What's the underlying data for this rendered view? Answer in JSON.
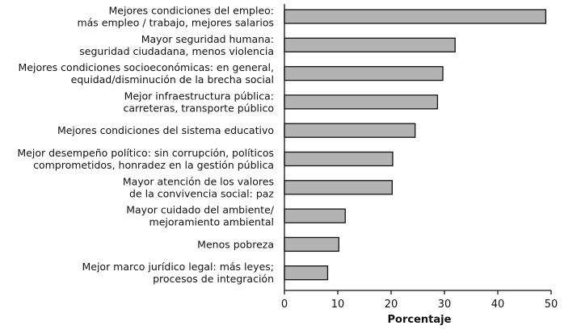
{
  "chart_data": {
    "type": "bar",
    "orientation": "horizontal",
    "categories": [
      [
        "Mejores condiciones del empleo:",
        "más empleo / trabajo, mejores salarios"
      ],
      [
        "Mayor seguridad humana:",
        "seguridad ciudadana, menos violencia"
      ],
      [
        "Mejores condiciones socioeconómicas: en general,",
        "equidad/disminución de la brecha social"
      ],
      [
        "Mejor infraestructura pública:",
        "carreteras, transporte público"
      ],
      [
        "Mejores condiciones del sistema educativo"
      ],
      [
        "Mejor desempeño político: sin corrupción, políticos",
        "comprometidos, honradez en la gestión pública"
      ],
      [
        "Mayor atención de los valores",
        "de la convivencia social: paz"
      ],
      [
        "Mayor cuidado del ambiente/",
        "mejoramiento ambiental"
      ],
      [
        "Menos pobreza"
      ],
      [
        "Mejor marco jurídico legal: más leyes;",
        "procesos de integración"
      ]
    ],
    "values": [
      49,
      32,
      29.7,
      28.7,
      24.5,
      20.3,
      20.2,
      11.4,
      10.2,
      8.1
    ],
    "xlabel": "Porcentaje",
    "xlim": [
      0,
      50
    ],
    "xticks": [
      0,
      10,
      20,
      30,
      40,
      50
    ],
    "colors": {
      "bar_fill": "#b3b3b3",
      "bar_stroke": "#111111"
    }
  }
}
